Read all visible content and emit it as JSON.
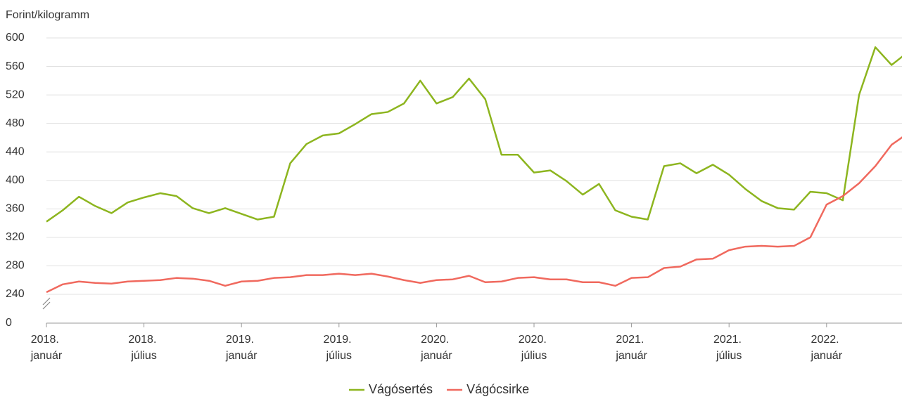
{
  "chart_data": {
    "type": "line",
    "y_axis_label": "Forint/kilogramm",
    "categories": [
      "2018. január",
      null,
      null,
      null,
      null,
      null,
      "2018. július",
      null,
      null,
      null,
      null,
      null,
      "2019. január",
      null,
      null,
      null,
      null,
      null,
      "2019. július",
      null,
      null,
      null,
      null,
      null,
      "2020. január",
      null,
      null,
      null,
      null,
      null,
      "2020. július",
      null,
      null,
      null,
      null,
      null,
      "2021. január",
      null,
      null,
      null,
      null,
      null,
      "2021. július",
      null,
      null,
      null,
      null,
      null,
      "2022. január",
      null,
      null,
      null,
      null,
      null
    ],
    "series": [
      {
        "name": "Vágósertés",
        "color": "#8db51f",
        "values": [
          342,
          358,
          377,
          364,
          354,
          369,
          376,
          382,
          378,
          361,
          354,
          361,
          353,
          345,
          349,
          424,
          451,
          463,
          466,
          479,
          493,
          496,
          508,
          540,
          508,
          517,
          543,
          514,
          436,
          436,
          411,
          414,
          399,
          380,
          395,
          358,
          349,
          345,
          420,
          424,
          410,
          422,
          408,
          388,
          371,
          361,
          359,
          384,
          382,
          372,
          520,
          587,
          562,
          580
        ]
      },
      {
        "name": "Vágócsirke",
        "color": "#f0695e",
        "values": [
          243,
          254,
          258,
          256,
          255,
          258,
          259,
          260,
          263,
          262,
          259,
          252,
          258,
          259,
          263,
          264,
          267,
          267,
          269,
          267,
          269,
          265,
          260,
          256,
          260,
          261,
          266,
          257,
          258,
          263,
          264,
          261,
          261,
          257,
          257,
          252,
          263,
          264,
          277,
          279,
          289,
          290,
          302,
          307,
          308,
          307,
          308,
          320,
          366,
          378,
          396,
          420,
          450,
          466
        ]
      }
    ],
    "ylim": [
      240,
      600
    ],
    "yticks": [
      0,
      240,
      280,
      320,
      360,
      400,
      440,
      480,
      520,
      560,
      600
    ],
    "axis_break": true,
    "grid": true,
    "legend": "bottom"
  }
}
